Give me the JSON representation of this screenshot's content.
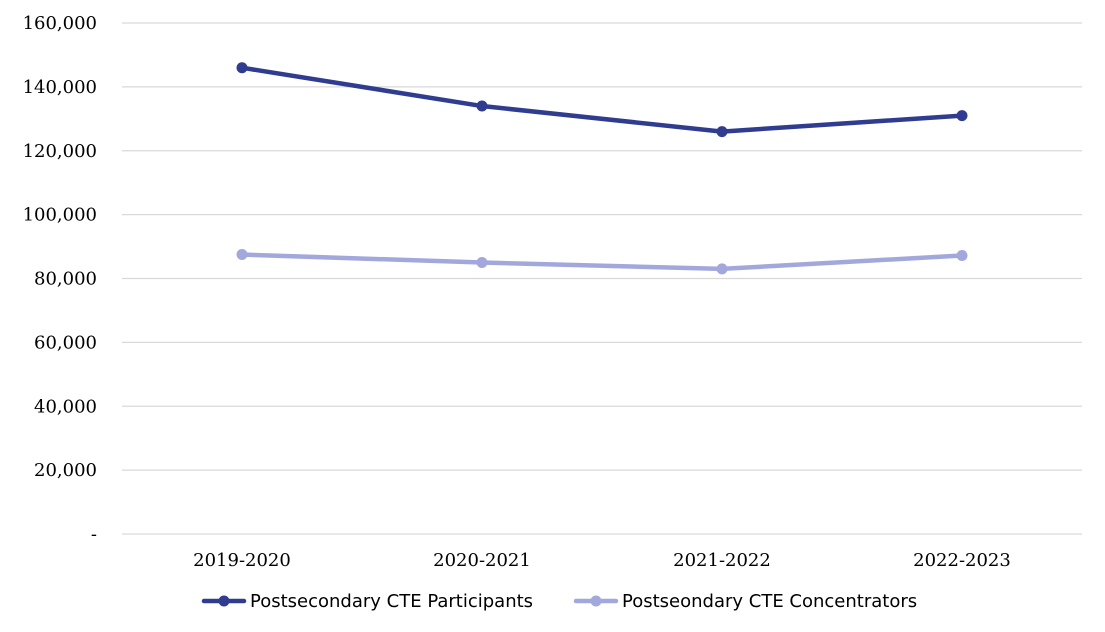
{
  "chart_data": {
    "type": "line",
    "title": "",
    "xlabel": "",
    "ylabel": "",
    "categories": [
      "2019-2020",
      "2020-2021",
      "2021-2022",
      "2022-2023"
    ],
    "ylim": [
      0,
      160000
    ],
    "yticks": [
      {
        "value": 0,
        "label": "-"
      },
      {
        "value": 20000,
        "label": "20,000"
      },
      {
        "value": 40000,
        "label": "40,000"
      },
      {
        "value": 60000,
        "label": "60,000"
      },
      {
        "value": 80000,
        "label": "80,000"
      },
      {
        "value": 100000,
        "label": "100,000"
      },
      {
        "value": 120000,
        "label": "120,000"
      },
      {
        "value": 140000,
        "label": "140,000"
      },
      {
        "value": 160000,
        "label": "160,000"
      }
    ],
    "grid": true,
    "legend_position": "bottom",
    "series": [
      {
        "name": "Postsecondary CTE Participants",
        "color": "#2f3c8f",
        "values": [
          146000,
          134000,
          126000,
          131000
        ]
      },
      {
        "name": "Postseondary CTE Concentrators",
        "color": "#a3a8dc",
        "values": [
          87500,
          85000,
          83000,
          87200
        ]
      }
    ]
  }
}
